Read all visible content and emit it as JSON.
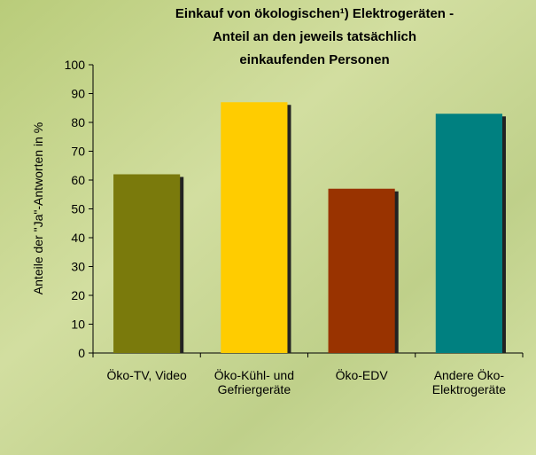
{
  "chart_data": {
    "type": "bar",
    "title": "Einkauf von ökologischen¹) Elektrogeräten -\nAnteil an den jeweils tatsächlich\neinkaufenden Personen",
    "y_label": "Anteile der \"Ja\"-Antworten in %",
    "categories": [
      "Öko-TV, Video",
      "Öko-Kühl- und\nGefriergeräte",
      "Öko-EDV",
      "Andere Öko-\nElektrogeräte"
    ],
    "values": [
      62,
      87,
      57,
      83
    ],
    "colors": [
      "#7a7a0c",
      "#ffcc00",
      "#993300",
      "#008080"
    ],
    "ylim": [
      0,
      100
    ],
    "yticks": [
      0,
      10,
      20,
      30,
      40,
      50,
      60,
      70,
      80,
      90,
      100
    ]
  }
}
